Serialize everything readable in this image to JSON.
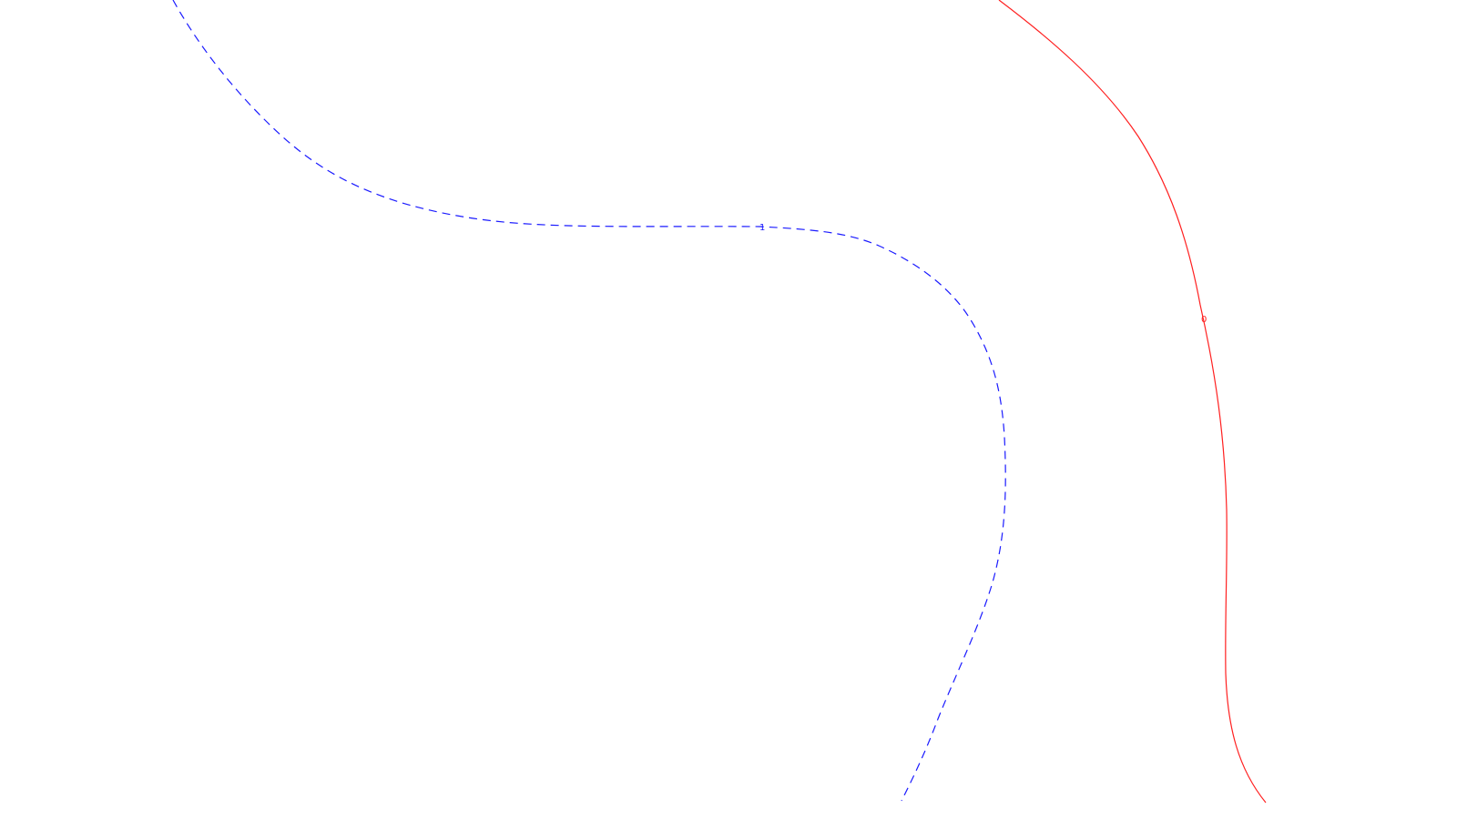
{
  "contours": [
    {
      "label": "1",
      "color": "#1a1aff",
      "style": "dashed"
    },
    {
      "label": "0",
      "color": "#ff2020",
      "style": "solid"
    }
  ]
}
